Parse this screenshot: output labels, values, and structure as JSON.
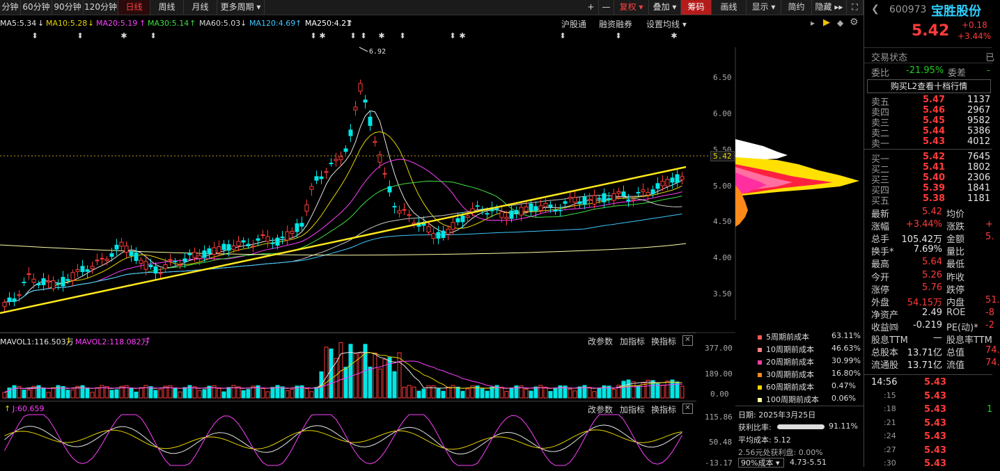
{
  "toolbar": {
    "periods": [
      "分钟",
      "60分钟",
      "90分钟",
      "120分钟",
      "日线",
      "周线",
      "月线",
      "更多周期"
    ],
    "active_period": "日线",
    "right_buttons": [
      "+",
      "—",
      "复权",
      "叠加",
      "筹码",
      "画线",
      "显示",
      "简约",
      "隐藏"
    ]
  },
  "ma_legend": {
    "ma5": "MA5:5.34",
    "ma10": "MA10:5.28",
    "ma20": "MA20:5.19",
    "ma30": "MA30:5.14",
    "ma60": "MA60:5.03",
    "ma120": "MA120:4.69",
    "ma250": "MA250:4.21"
  },
  "chart_links": [
    "沪股通",
    "融资融券",
    "设置均线"
  ],
  "price_axis": [
    "6.50",
    "6.00",
    "5.50",
    "5.00",
    "4.50",
    "4.00",
    "3.50"
  ],
  "current_price_tag": "5.42",
  "peak_label": "6.92",
  "volume_panel": {
    "mavol1": "MAVOL1:116.503万",
    "mavol2": "MAVOL2:118.082万",
    "axis": [
      "377.00",
      "189.00",
      "0.00"
    ],
    "actions": [
      "改参数",
      "加指标",
      "换指标"
    ]
  },
  "kdj_panel": {
    "label": "J:60.659",
    "axis": [
      "115.86",
      "50.48",
      "-13.17"
    ],
    "actions": [
      "改参数",
      "加指标",
      "换指标"
    ]
  },
  "chip_costs": [
    {
      "label": "5周期前成本",
      "value": "63.11%",
      "color": "#ff5a5a"
    },
    {
      "label": "10周期前成本",
      "value": "46.63%",
      "color": "#ff7f7f"
    },
    {
      "label": "20周期前成本",
      "value": "30.99%",
      "color": "#ff3fa0"
    },
    {
      "label": "30周期前成本",
      "value": "16.80%",
      "color": "#ff8a1a"
    },
    {
      "label": "60周期前成本",
      "value": "0.47%",
      "color": "#ffd400"
    },
    {
      "label": "100周期前成本",
      "value": "0.06%",
      "color": "#ffffa0"
    }
  ],
  "chip_info": {
    "date": "日期: 2025年3月25日",
    "profit_ratio_label": "获利比率:",
    "profit_ratio": "91.11%",
    "avg_cost": "平均成本: 5.12",
    "profit_at": "2.56元处获利盘: 0.00%",
    "range_select": "90%成本",
    "range_value": "4.73-5.51"
  },
  "stock": {
    "code": "600973",
    "name": "宝胜股份",
    "price": "5.42",
    "change": "+0.18",
    "change_pct": "+3.44%",
    "trade_status": "交易状态",
    "trade_status_value": "已",
    "weibi_label": "委比",
    "weibi": "-21.95%",
    "weicha_label": "委差",
    "weicha": "-",
    "l2_link": "购买L2查看十档行情"
  },
  "asks": [
    {
      "label": "卖五",
      "price": "5.47",
      "vol": "1137"
    },
    {
      "label": "卖四",
      "price": "5.46",
      "vol": "2967"
    },
    {
      "label": "卖三",
      "price": "5.45",
      "vol": "9582"
    },
    {
      "label": "卖二",
      "price": "5.44",
      "vol": "5386"
    },
    {
      "label": "卖一",
      "price": "5.43",
      "vol": "4012"
    }
  ],
  "bids": [
    {
      "label": "买一",
      "price": "5.42",
      "vol": "7645"
    },
    {
      "label": "买二",
      "price": "5.41",
      "vol": "1802"
    },
    {
      "label": "买三",
      "price": "5.40",
      "vol": "2306"
    },
    {
      "label": "买四",
      "price": "5.39",
      "vol": "1841"
    },
    {
      "label": "买五",
      "price": "5.38",
      "vol": "1181"
    }
  ],
  "stats": [
    {
      "l": "最新",
      "v": "5.42",
      "c": "up",
      "l2": "均价",
      "v2": ""
    },
    {
      "l": "涨幅",
      "v": "+3.44%",
      "c": "up",
      "l2": "涨跌",
      "v2": "+"
    },
    {
      "l": "总手",
      "v": "105.42万",
      "c": "wh",
      "l2": "金额",
      "v2": "5."
    },
    {
      "l": "换手*",
      "v": "7.69%",
      "c": "wh",
      "l2": "量比",
      "v2": ""
    },
    {
      "l": "最高",
      "v": "5.64",
      "c": "up",
      "l2": "最低",
      "v2": ""
    },
    {
      "l": "今开",
      "v": "5.26",
      "c": "up",
      "l2": "昨收",
      "v2": ""
    },
    {
      "l": "涨停",
      "v": "5.76",
      "c": "up",
      "l2": "跌停",
      "v2": ""
    },
    {
      "l": "外盘",
      "v": "54.15万",
      "c": "up",
      "l2": "内盘",
      "v2": "51."
    },
    {
      "l": "净资产",
      "v": "2.49",
      "c": "wh",
      "l2": "ROE",
      "v2": "-8"
    },
    {
      "l": "收益㈣",
      "v": "-0.219",
      "c": "wh",
      "l2": "PE(动)*",
      "v2": "-2"
    },
    {
      "l": "股息TTM",
      "v": "—",
      "c": "wh",
      "l2": "股息率TTM",
      "v2": ""
    },
    {
      "l": "总股本",
      "v": "13.71亿",
      "c": "wh",
      "l2": "总值",
      "v2": "74."
    },
    {
      "l": "流通股",
      "v": "13.71亿",
      "c": "wh",
      "l2": "流值",
      "v2": "74."
    }
  ],
  "ticks": [
    {
      "t": "14:56",
      "p": "5.43",
      "v": ""
    },
    {
      "t": ":15",
      "p": "5.43",
      "v": ""
    },
    {
      "t": ":18",
      "p": "5.43",
      "v": "1"
    },
    {
      "t": ":21",
      "p": "5.43",
      "v": ""
    },
    {
      "t": ":24",
      "p": "5.43",
      "v": ""
    },
    {
      "t": ":27",
      "p": "5.43",
      "v": ""
    },
    {
      "t": ":30",
      "p": "5.43",
      "v": ""
    }
  ]
}
